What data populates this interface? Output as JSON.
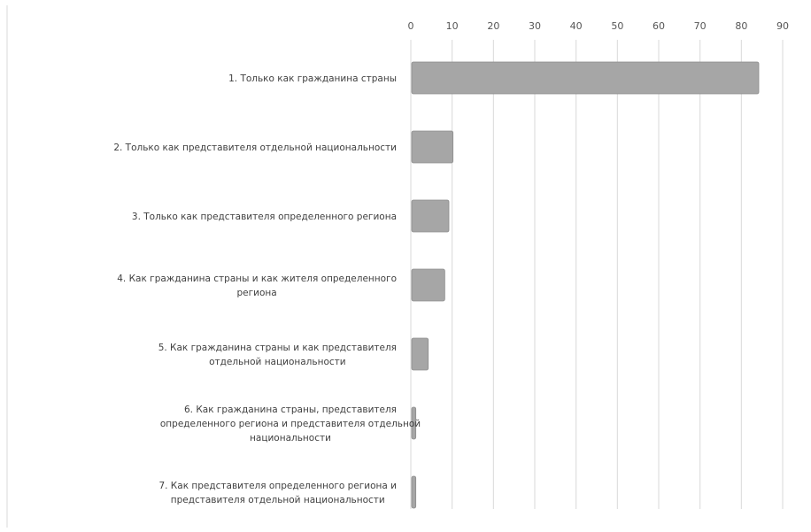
{
  "chart_data": {
    "type": "bar",
    "orientation": "horizontal",
    "title": "",
    "xlabel": "",
    "ylabel": "",
    "xlim": [
      0,
      90
    ],
    "x_ticks": [
      0,
      10,
      20,
      30,
      40,
      50,
      60,
      70,
      80,
      90
    ],
    "x_axis_position": "top",
    "grid": true,
    "legend": "none",
    "bar_color": "#a6a6a6",
    "categories": [
      [
        "1. Только как гражданина страны"
      ],
      [
        "2. Только как представителя отдельной национальности"
      ],
      [
        "3. Только как представителя определенного региона"
      ],
      [
        "4. Как гражданина страны и как жителя определенного",
        "региона"
      ],
      [
        "5. Как гражданина страны и как представителя",
        "отдельной национальности"
      ],
      [
        "6. Как гражданина страны, представителя",
        "определенного региона и представителя отдельной",
        "национальности"
      ],
      [
        "7. Как представителя определенного региона и",
        "представителя отдельной национальности"
      ]
    ],
    "values": [
      84,
      10,
      9,
      8,
      4,
      1,
      1
    ]
  }
}
